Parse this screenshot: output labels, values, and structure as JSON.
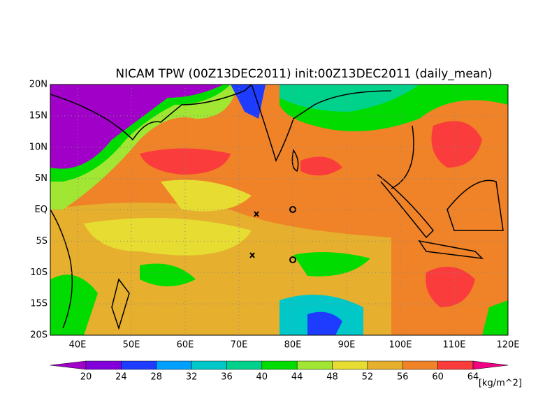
{
  "title": "NICAM TPW (00Z13DEC2011) init:00Z13DEC2011 (daily_mean)",
  "map": {
    "lat_labels": [
      "20N",
      "15N",
      "10N",
      "5N",
      "EQ",
      "5S",
      "10S",
      "15S",
      "20S"
    ],
    "lon_labels": [
      "40E",
      "50E",
      "60E",
      "70E",
      "80E",
      "90E",
      "100E",
      "110E",
      "120E"
    ]
  },
  "colorbar": {
    "levels": [
      20,
      24,
      28,
      32,
      36,
      40,
      44,
      48,
      52,
      56,
      60,
      64
    ],
    "colors": [
      "#a000c8",
      "#8200dc",
      "#1e3cff",
      "#00a0ff",
      "#00c8c8",
      "#00d28c",
      "#00dc00",
      "#a0e632",
      "#e6dc32",
      "#e6af2d",
      "#f08228",
      "#fa3c3c",
      "#f00082"
    ],
    "unit": "[kg/m^2]"
  }
}
